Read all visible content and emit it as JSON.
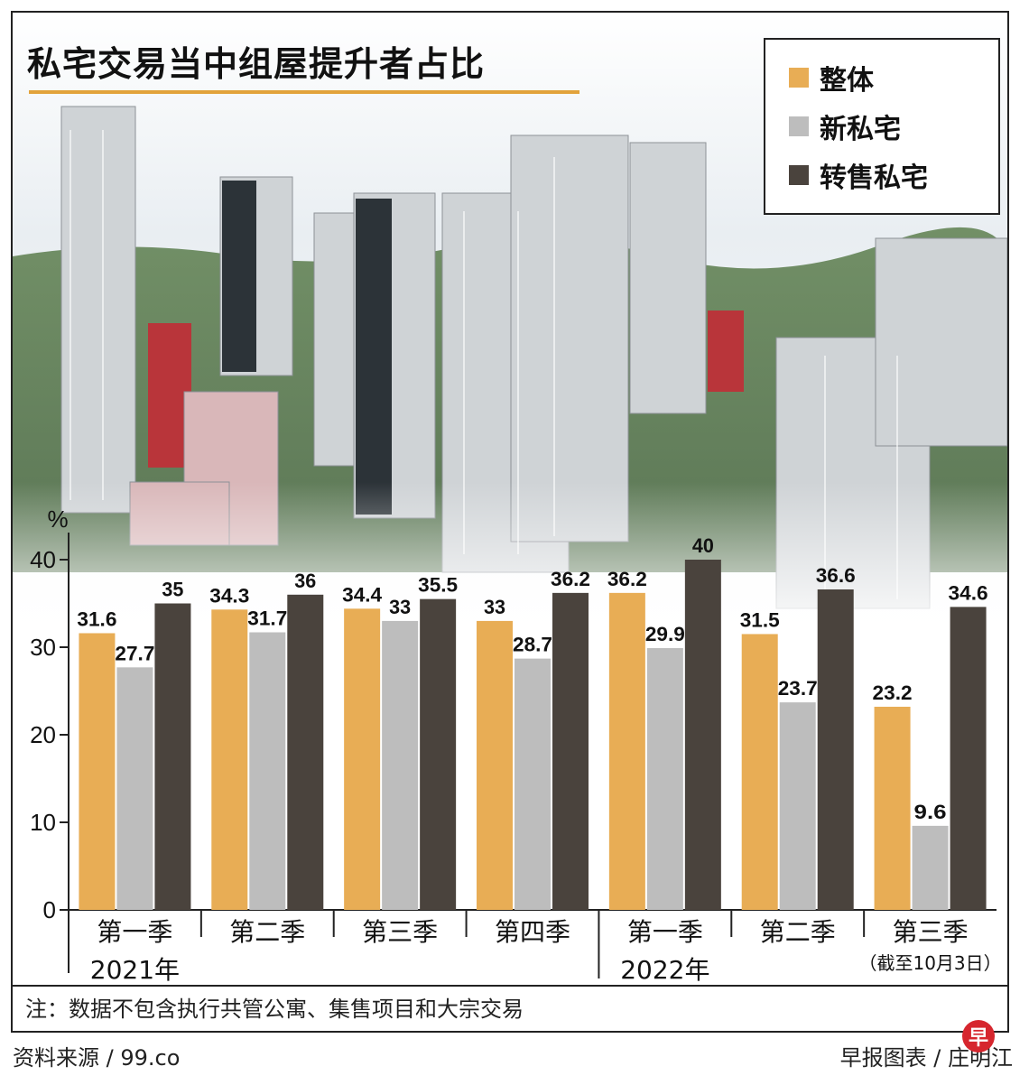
{
  "title": "私宅交易当中组屋提升者占比",
  "legend": [
    {
      "label": "整体",
      "color": "#e8ad55"
    },
    {
      "label": "新私宅",
      "color": "#bdbdbd"
    },
    {
      "label": "转售私宅",
      "color": "#4a433d"
    }
  ],
  "chart_data": {
    "type": "bar",
    "ylabel": "%",
    "ylim": [
      0,
      40
    ],
    "yticks": [
      "0",
      "10",
      "20",
      "30",
      "40"
    ],
    "categories": [
      "第一季",
      "第二季",
      "第三季",
      "第四季",
      "第一季",
      "第二季",
      "第三季"
    ],
    "category_notes": [
      "",
      "",
      "",
      "",
      "",
      "",
      "（截至10月3日）"
    ],
    "years": [
      {
        "label": "2021年",
        "start_index": 0,
        "count": 4
      },
      {
        "label": "2022年",
        "start_index": 4,
        "count": 3
      }
    ],
    "series": [
      {
        "name": "整体",
        "color": "#e8ad55",
        "values": [
          31.6,
          34.3,
          34.4,
          33,
          36.2,
          31.5,
          23.2
        ],
        "labels": [
          "31.6",
          "34.3",
          "34.4",
          "33",
          "36.2",
          "31.5",
          "23.2"
        ]
      },
      {
        "name": "新私宅",
        "color": "#bdbdbd",
        "values": [
          27.7,
          31.7,
          33,
          28.7,
          29.9,
          23.7,
          9.6
        ],
        "labels": [
          "27.7",
          "31.7",
          "33",
          "28.7",
          "29.9",
          "23.7",
          "9.6"
        ]
      },
      {
        "name": "转售私宅",
        "color": "#4a433d",
        "values": [
          35,
          36,
          35.5,
          36.2,
          40,
          36.6,
          34.6
        ],
        "labels": [
          "35",
          "36",
          "35.5",
          "36.2",
          "40",
          "36.6",
          "34.6"
        ]
      }
    ]
  },
  "note": "注：数据不包含执行共管公寓、集售项目和大宗交易",
  "source": "资料来源 / 99.co",
  "credit": "早报图表 / 庄明江",
  "logo_char": "早"
}
